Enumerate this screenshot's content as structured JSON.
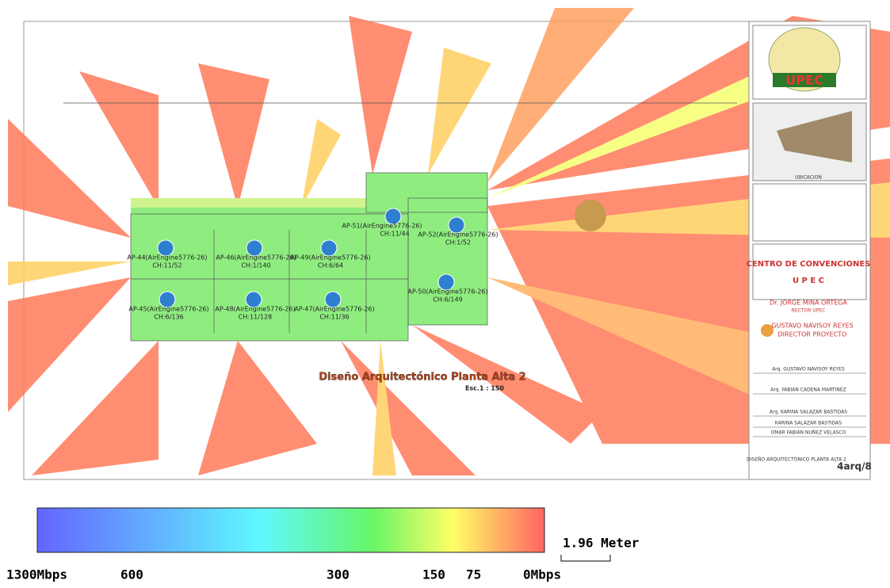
{
  "plan": {
    "title": "Diseño Arquitectónico Planta Alta 2",
    "scale": "Esc.1 : 150"
  },
  "access_points": [
    {
      "name": "AP-44(AirEngine5776-26)",
      "channel": "CH:11/52"
    },
    {
      "name": "AP-46(AirEngine5776-26)",
      "channel": "CH:1/140"
    },
    {
      "name": "AP-49(AirEngine5776-26)",
      "channel": "CH:6/64"
    },
    {
      "name": "AP-51(AirEngine5776-26)",
      "channel": "CH:11/44"
    },
    {
      "name": "AP-52(AirEngine5776-26)",
      "channel": "CH:1/52"
    },
    {
      "name": "AP-50(AirEngine5776-26)",
      "channel": "CH:6/149"
    },
    {
      "name": "AP-45(AirEngine5776-26)",
      "channel": "CH:6/136"
    },
    {
      "name": "AP-48(AirEngine5776-26)",
      "channel": "CH:11/128"
    },
    {
      "name": "AP-47(AirEngine5776-26)",
      "channel": "CH:11/36"
    }
  ],
  "title_block": {
    "logo": "UPEC",
    "location": "UBICACION",
    "project": "CENTRO DE CONVENCIONES",
    "project_sub": "U P E C",
    "rector": "Dr. JORGE MINA ORTEGA",
    "rector_role": "RECTOR UPEC",
    "director": "GUSTAVO NAVISOY REYES",
    "director_role": "DIRECTOR PROYECTO",
    "names": [
      "Arq. GUSTAVO NAVISOY REYES",
      "Arq. FABIAN CADENA MARTINEZ",
      "Arq. KARINA SALAZAR BASTIDAS",
      "KARINA SALAZAR BASTIDAS",
      "OMAR FABIAN NUÑEZ VELASCO"
    ],
    "sheet_title": "DISEÑO ARQUITECTÓNICO PLANTA ALTA 2",
    "sheet": "4arq/8"
  },
  "legend": {
    "labels": [
      "1300Mbps",
      "600",
      "300",
      "150",
      "75",
      "0Mbps"
    ],
    "distance": "1.96 Meter"
  }
}
